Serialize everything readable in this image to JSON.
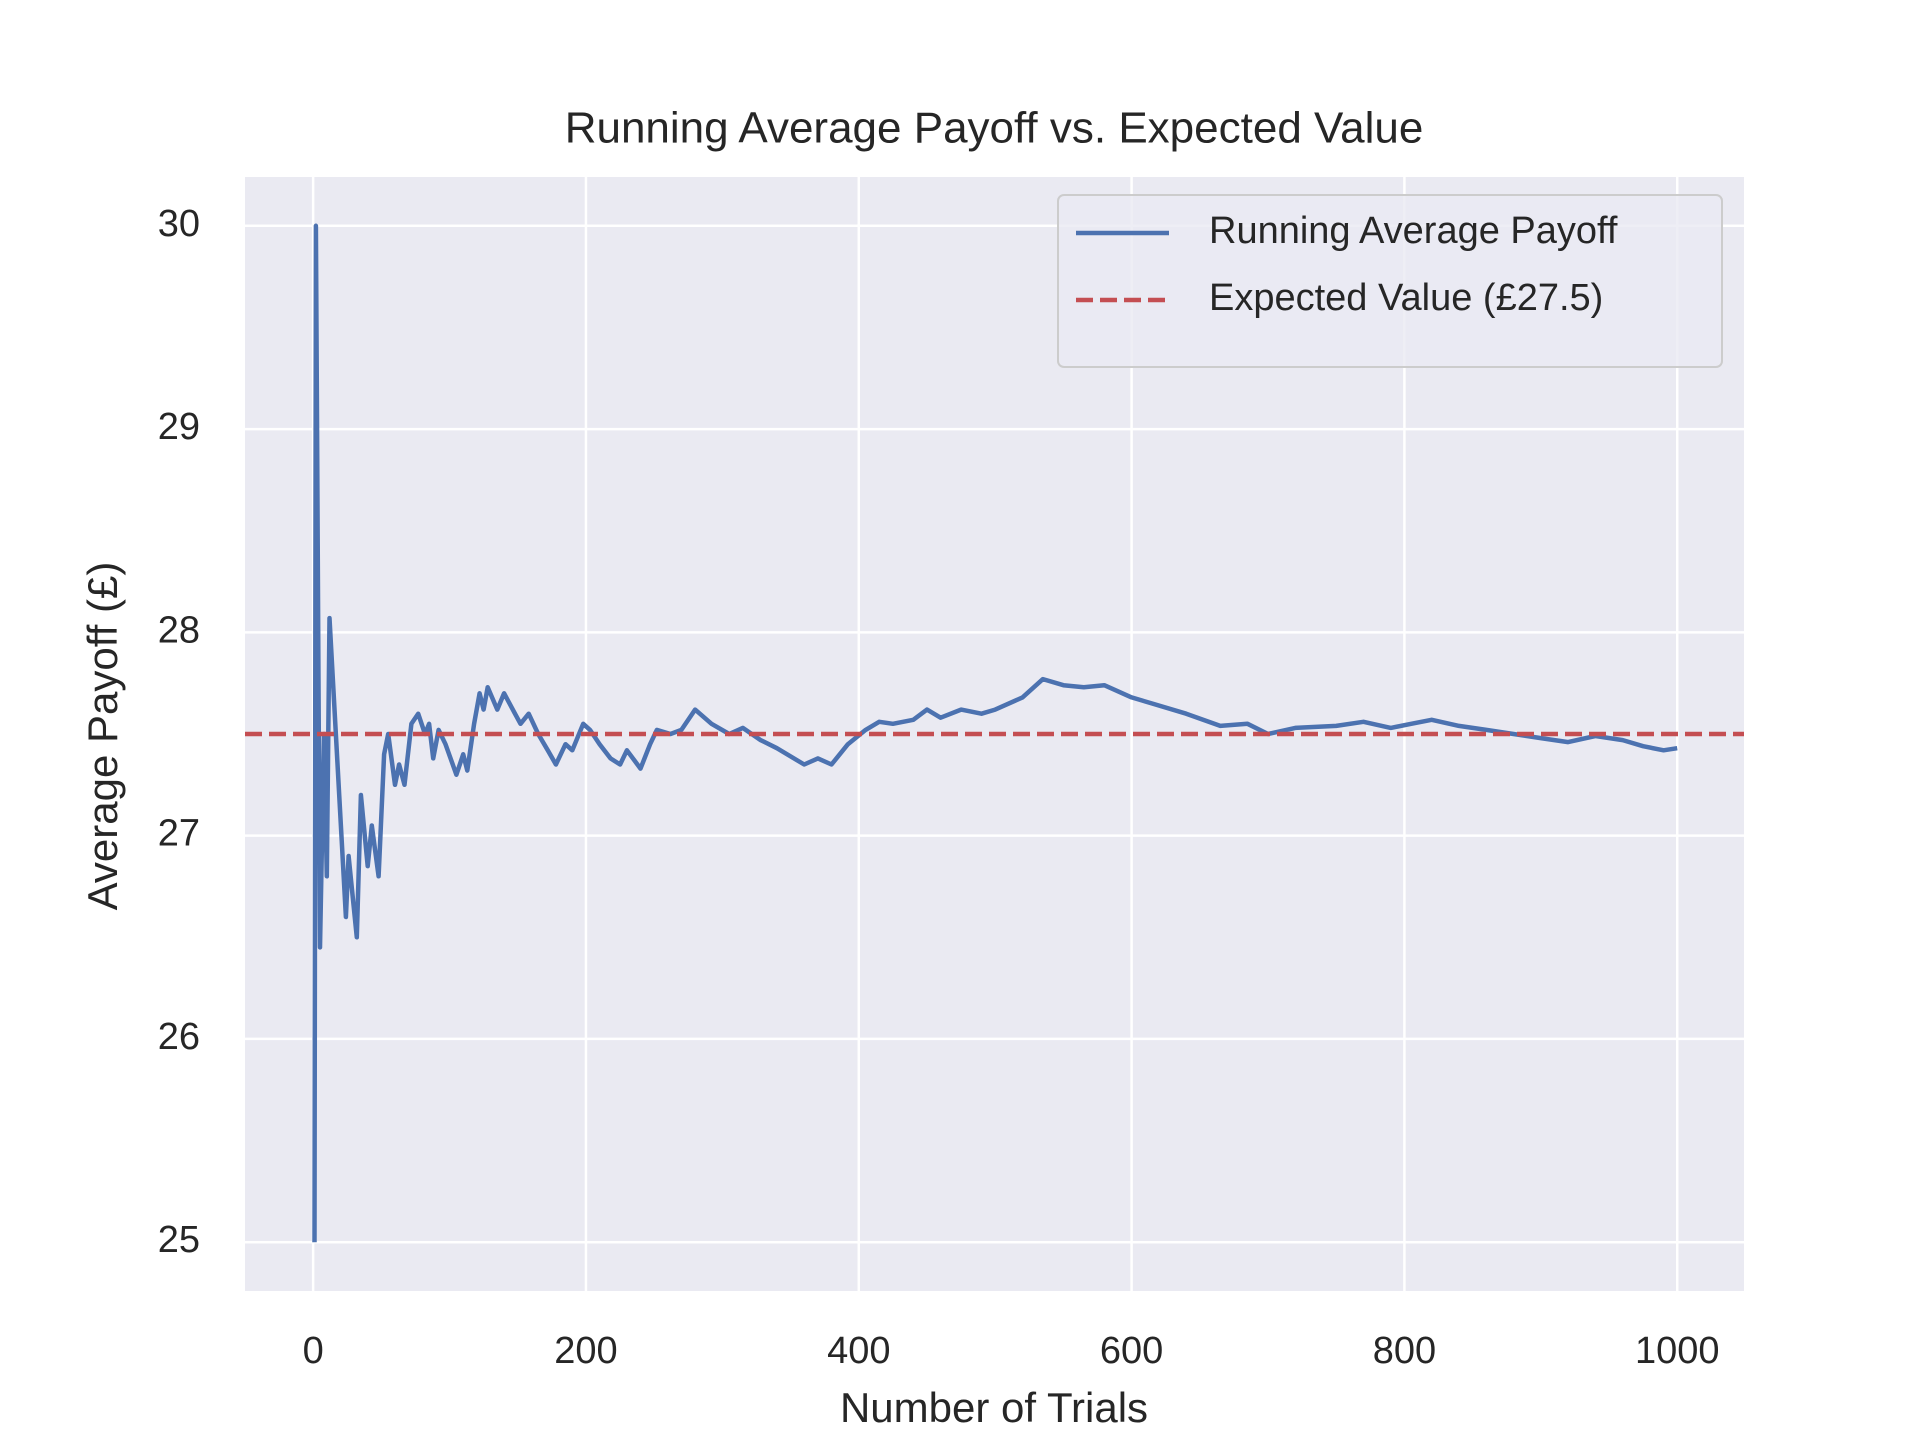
{
  "chart_data": {
    "type": "line",
    "title": "Running Average Payoff vs. Expected Value",
    "x_label": "Number of Trials",
    "y_label": "Average Payoff (£)",
    "series": [
      {
        "name": "Running Average Payoff",
        "color": "#4c72b0",
        "x": [
          1,
          2,
          5,
          8,
          10,
          12,
          24,
          26,
          32,
          35,
          40,
          43,
          48,
          52,
          55,
          60,
          63,
          67,
          72,
          77,
          82,
          85,
          88,
          92,
          97,
          105,
          110,
          113,
          118,
          122,
          125,
          128,
          135,
          140,
          148,
          152,
          158,
          165,
          172,
          178,
          185,
          190,
          198,
          203,
          210,
          218,
          225,
          230,
          240,
          247,
          252,
          262,
          270,
          280,
          292,
          305,
          315,
          328,
          340,
          360,
          370,
          380,
          392,
          405,
          415,
          425,
          440,
          450,
          460,
          475,
          490,
          500,
          520,
          535,
          550,
          565,
          580,
          600,
          615,
          640,
          665,
          685,
          700,
          720,
          750,
          770,
          790,
          805,
          820,
          840,
          860,
          880,
          900,
          920,
          940,
          960,
          975,
          990,
          1000
        ],
        "values": [
          25,
          30,
          26.45,
          27.5,
          26.8,
          28.07,
          26.6,
          26.9,
          26.5,
          27.2,
          26.85,
          27.05,
          26.8,
          27.4,
          27.5,
          27.25,
          27.35,
          27.25,
          27.55,
          27.6,
          27.5,
          27.55,
          27.38,
          27.52,
          27.45,
          27.3,
          27.4,
          27.32,
          27.55,
          27.7,
          27.62,
          27.73,
          27.62,
          27.7,
          27.6,
          27.55,
          27.6,
          27.5,
          27.42,
          27.35,
          27.45,
          27.42,
          27.55,
          27.52,
          27.45,
          27.38,
          27.35,
          27.42,
          27.33,
          27.45,
          27.52,
          27.5,
          27.52,
          27.62,
          27.55,
          27.5,
          27.53,
          27.47,
          27.43,
          27.35,
          27.38,
          27.35,
          27.45,
          27.52,
          27.56,
          27.55,
          27.57,
          27.62,
          27.58,
          27.62,
          27.6,
          27.62,
          27.68,
          27.77,
          27.74,
          27.73,
          27.74,
          27.68,
          27.65,
          27.6,
          27.54,
          27.55,
          27.5,
          27.53,
          27.54,
          27.56,
          27.53,
          27.55,
          27.57,
          27.54,
          27.52,
          27.5,
          27.48,
          27.46,
          27.49,
          27.47,
          27.44,
          27.42,
          27.43
        ]
      }
    ],
    "reference_line": {
      "name": "Expected Value (£27.5)",
      "value": 27.5,
      "color": "#c44e52",
      "style": "dashed"
    },
    "xlim": [
      -49.95,
      1048.95
    ],
    "xticks": [
      0,
      200,
      400,
      600,
      800,
      1000
    ],
    "ylim": [
      24.76,
      30.24
    ],
    "yticks": [
      25,
      26,
      27,
      28,
      29,
      30
    ],
    "grid": true,
    "legend": "upper right"
  }
}
